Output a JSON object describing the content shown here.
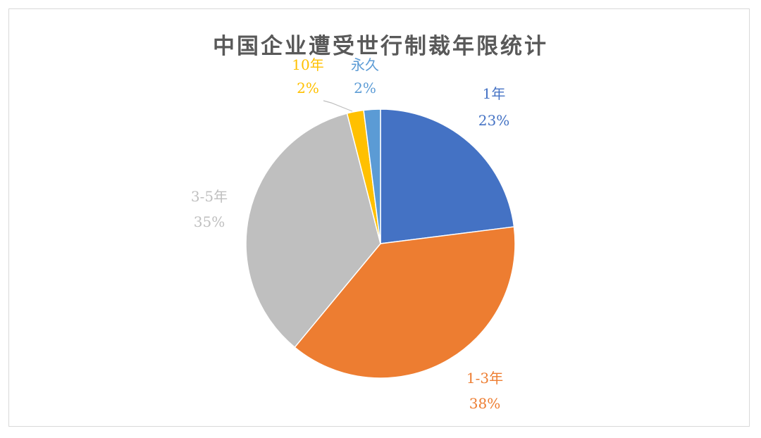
{
  "chart_data": {
    "type": "pie",
    "title": "中国企业遭受世行制裁年限统计",
    "slices": [
      {
        "category": "1年",
        "value": 23,
        "percent_label": "23%",
        "color": "#4472C4"
      },
      {
        "category": "1-3年",
        "value": 38,
        "percent_label": "38%",
        "color": "#ED7D31"
      },
      {
        "category": "3-5年",
        "value": 35,
        "percent_label": "35%",
        "color": "#BFBFBF"
      },
      {
        "category": "10年",
        "value": 2,
        "percent_label": "2%",
        "color": "#FFC000"
      },
      {
        "category": "永久",
        "value": 2,
        "percent_label": "2%",
        "color": "#5B9BD5"
      }
    ],
    "legend": "none",
    "grid": false
  }
}
